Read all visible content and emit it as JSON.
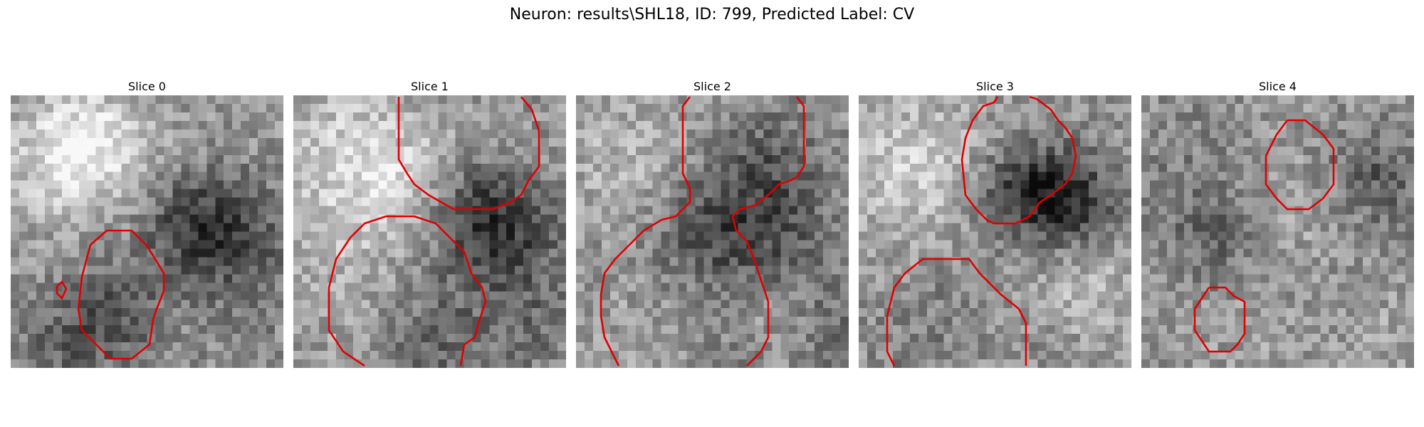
{
  "figure": {
    "suptitle": "Neuron: results\\SHL18, ID: 799, Predicted Label: CV",
    "contour_color": "#e00000"
  },
  "slices": [
    {
      "title": "Slice 0"
    },
    {
      "title": "Slice 1"
    },
    {
      "title": "Slice 2"
    },
    {
      "title": "Slice 3"
    },
    {
      "title": "Slice 4"
    }
  ]
}
